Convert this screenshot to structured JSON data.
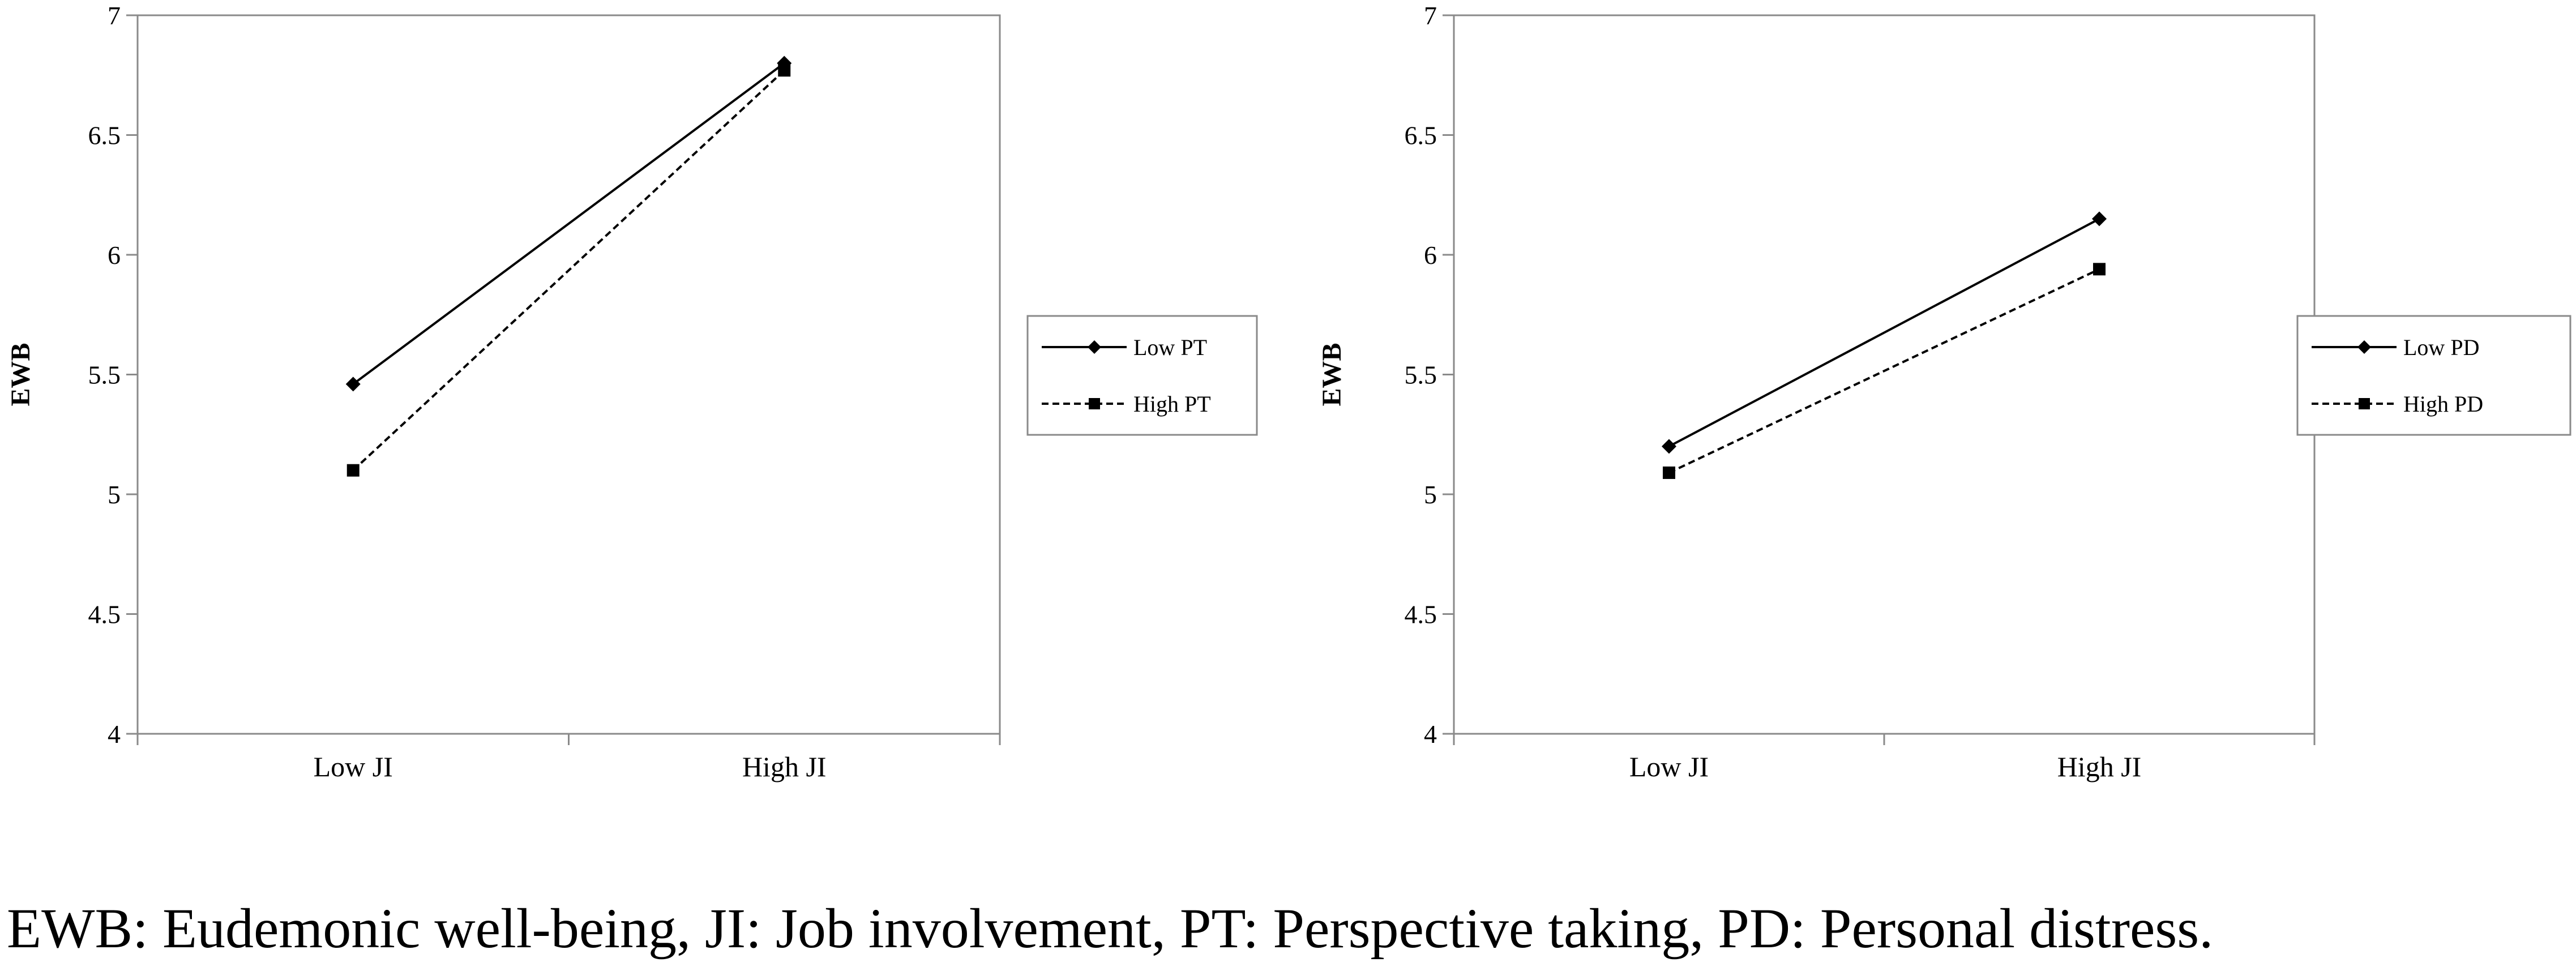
{
  "chart_data": [
    {
      "type": "line",
      "title": "",
      "xlabel": "",
      "ylabel": "EWB",
      "categories": [
        "Low JI",
        "High JI"
      ],
      "ylim": [
        4,
        7
      ],
      "y_ticks": [
        "4",
        "4.5",
        "5",
        "5.5",
        "6",
        "6.5",
        "7"
      ],
      "grid": false,
      "legend_position": "right",
      "series": [
        {
          "name": "Low PT",
          "values": [
            5.46,
            6.8
          ],
          "style": "solid",
          "marker": "diamond",
          "color": "#000000"
        },
        {
          "name": "High PT",
          "values": [
            5.1,
            6.77
          ],
          "style": "dashed",
          "marker": "square",
          "color": "#000000"
        }
      ]
    },
    {
      "type": "line",
      "title": "",
      "xlabel": "",
      "ylabel": "EWB",
      "categories": [
        "Low JI",
        "High JI"
      ],
      "ylim": [
        4,
        7
      ],
      "y_ticks": [
        "4",
        "4.5",
        "5",
        "5.5",
        "6",
        "6.5",
        "7"
      ],
      "grid": false,
      "legend_position": "right",
      "series": [
        {
          "name": "Low PD",
          "values": [
            5.2,
            6.15
          ],
          "style": "solid",
          "marker": "diamond",
          "color": "#000000"
        },
        {
          "name": "High PD",
          "values": [
            5.09,
            5.94
          ],
          "style": "dashed",
          "marker": "square",
          "color": "#000000"
        }
      ]
    }
  ],
  "caption": "EWB: Eudemonic well-being, JI: Job involvement, PT: Perspective taking, PD: Personal distress."
}
